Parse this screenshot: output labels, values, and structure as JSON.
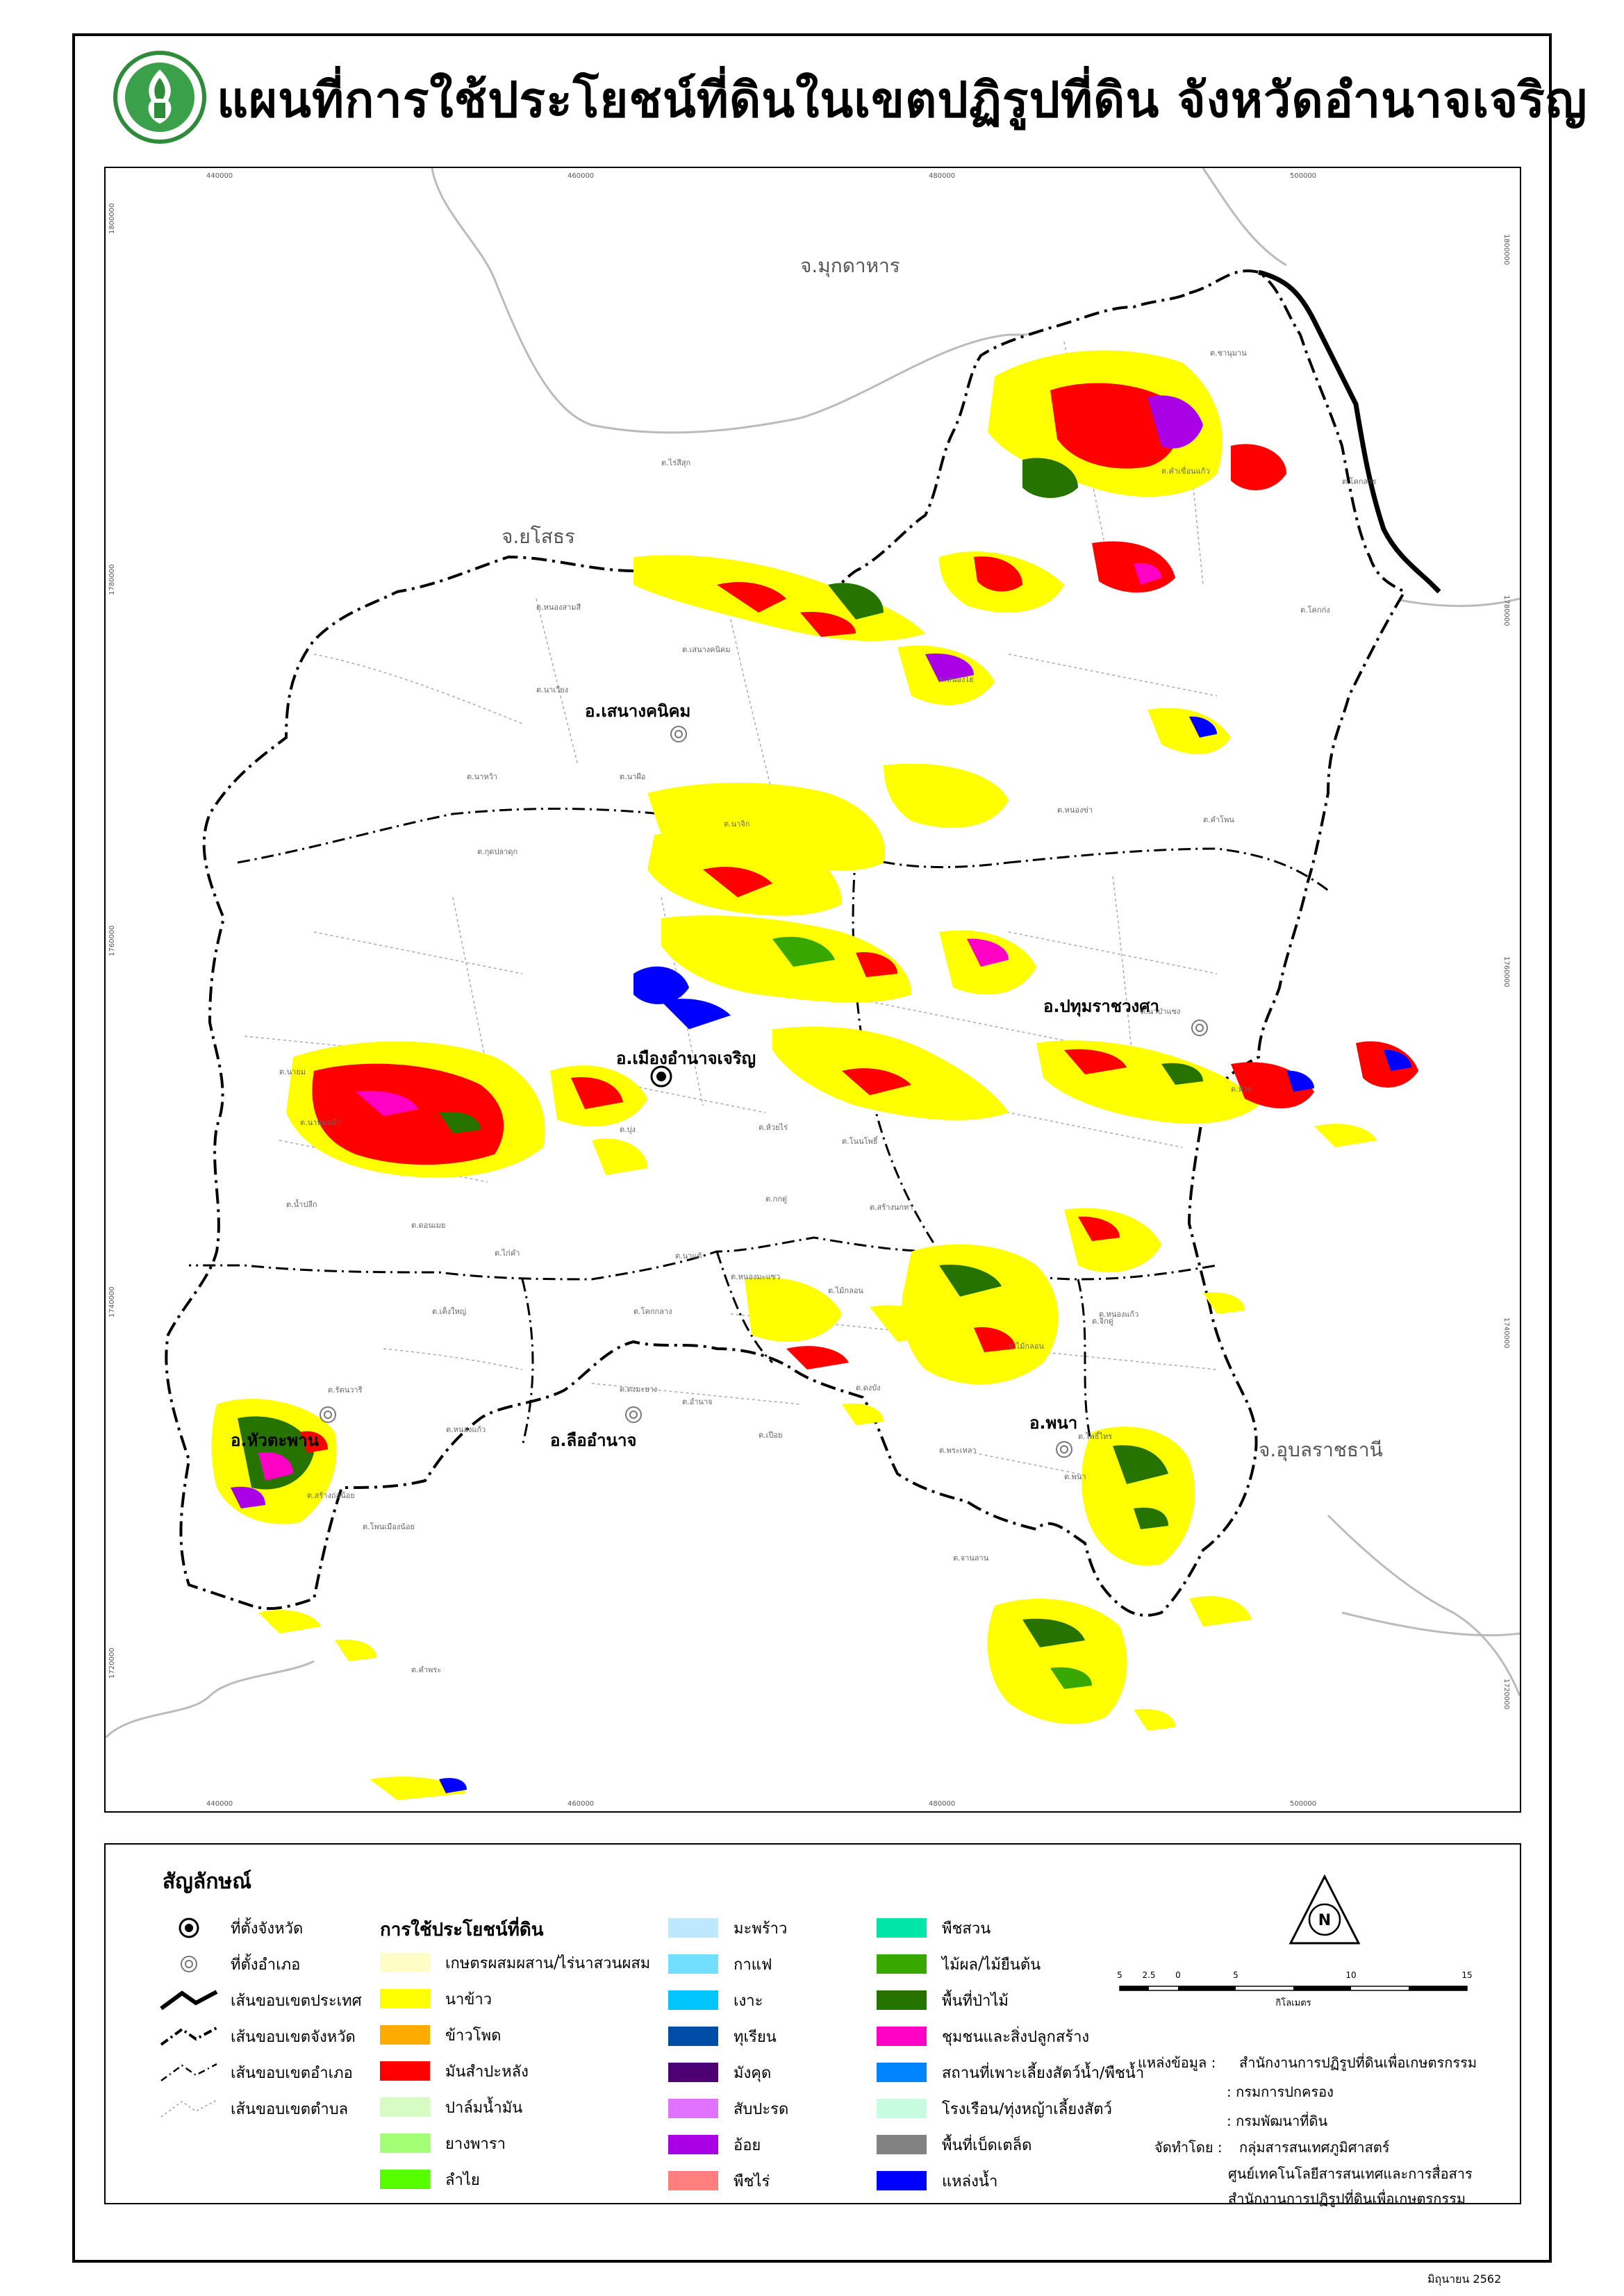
{
  "title": "แผนที่การใช้ประโยชน์ที่ดินในเขตปฏิรูปที่ดิน จังหวัดอำนาจเจริญ",
  "map": {
    "x_ticks": [
      "440000",
      "460000",
      "480000",
      "500000"
    ],
    "y_ticks": [
      "1800000",
      "1780000",
      "1760000",
      "1740000",
      "1720000"
    ],
    "provinces": {
      "mukdahan": "จ.มุกดาหาร",
      "yasothon": "จ.ยโสธร",
      "ubon": "จ.อุบลราชธานี"
    },
    "districts": {
      "senangkhanikhom": "อ.เสนางคนิคม",
      "mueang": "อ.เมืองอำนาจเจริญ",
      "pathum": "อ.ปทุมราชวงศา",
      "huataphan": "อ.หัวตะพาน",
      "lueamnat": "อ.ลืออำนาจ",
      "phana": "อ.พนา"
    },
    "subdistricts": [
      "ต.ชานุมาน",
      "ต.โคกสาร",
      "ต.คำเขื่อนแก้ว",
      "ต.โคกก่ง",
      "ต.ไร่สีสุก",
      "ต.หนองสามสี",
      "ต.เสนางคนิคม",
      "ต.นาเวียง",
      "ต.หนองไฮ",
      "ต.นาหว้า",
      "ต.นาผือ",
      "ต.กุดปลาดุก",
      "ต.นาจิก",
      "ต.หนองข่า",
      "ต.คำโพน",
      "ต.นาป่าแซง",
      "ต.ห้วย",
      "ต.นายม",
      "ต.นาหมอม้า",
      "ต.บุ่ง",
      "ต.ห้วยไร่",
      "ต.โนนโพธิ์",
      "ต.สร้างนกทา",
      "ต.กกดู่",
      "ต.หนองมะแซว",
      "ต.น้ำปลีก",
      "ต.ดอนเมย",
      "ต.ไก่คำ",
      "ต.นาแต้",
      "ต.ไม้กลอน",
      "ต.จิกดู่",
      "ต.หนองแก้ว",
      "ต.เค็งใหญ่",
      "ต.รัตนวารี",
      "ต.หนองแก้ว",
      "ต.โคกกลาง",
      "ต.อำนาจ",
      "ต.ดงมะยาง",
      "ต.เปือย",
      "ต.ดงบัง",
      "ต.พระเหลา",
      "ต.ไม้กลอน",
      "ต.พนา",
      "ต.จานลาน",
      "ต.โพธิ์ไทร",
      "ต.สร้างถ่อน้อย",
      "ต.โพนเมืองน้อย",
      "ต.คำพระ"
    ]
  },
  "legend": {
    "title": "สัญลักษณ์",
    "symbols": [
      {
        "label": "ที่ตั้งจังหวัด",
        "icon": "province-seat-icon"
      },
      {
        "label": "ที่ตั้งอำเภอ",
        "icon": "district-seat-icon"
      },
      {
        "label": "เส้นขอบเขตประเทศ",
        "icon": "country-boundary-line"
      },
      {
        "label": "เส้นขอบเขตจังหวัด",
        "icon": "province-boundary-line"
      },
      {
        "label": "เส้นขอบเขตอำเภอ",
        "icon": "district-boundary-line"
      },
      {
        "label": "เส้นขอบเขตตำบล",
        "icon": "subdistrict-boundary-line"
      }
    ],
    "landuse_title": "การใช้ประโยชน์ที่ดิน",
    "landuse": [
      {
        "label": "เกษตรผสมผสาน/ไร่นาสวนผสม",
        "color": "#fefdc8"
      },
      {
        "label": "นาข้าว",
        "color": "#ffff00"
      },
      {
        "label": "ข้าวโพด",
        "color": "#ffaa00"
      },
      {
        "label": "มันสำปะหลัง",
        "color": "#ff0000"
      },
      {
        "label": "ปาล์มน้ำมัน",
        "color": "#d6fcc4"
      },
      {
        "label": "ยางพารา",
        "color": "#a3ff73"
      },
      {
        "label": "ลำไย",
        "color": "#55ff00"
      },
      {
        "label": "มะพร้าว",
        "color": "#bee8ff"
      },
      {
        "label": "กาแฟ",
        "color": "#73dfff"
      },
      {
        "label": "เงาะ",
        "color": "#00c5ff"
      },
      {
        "label": "ทุเรียน",
        "color": "#004da8"
      },
      {
        "label": "มังคุด",
        "color": "#4c0073"
      },
      {
        "label": "สับปะรด",
        "color": "#df73ff"
      },
      {
        "label": "อ้อย",
        "color": "#a900e6"
      },
      {
        "label": "พืชไร่",
        "color": "#ff7f7f"
      },
      {
        "label": "พืชสวน",
        "color": "#00e6a9"
      },
      {
        "label": "ไม้ผล/ไม้ยืนต้น",
        "color": "#38a800"
      },
      {
        "label": "พื้นที่ป่าไม้",
        "color": "#267300"
      },
      {
        "label": "ชุมชนและสิ่งปลูกสร้าง",
        "color": "#ff00c5"
      },
      {
        "label": "สถานที่เพาะเลี้ยงสัตว์น้ำ/พืชน้ำ",
        "color": "#0084ff"
      },
      {
        "label": "โรงเรือน/ทุ่งหญ้าเลี้ยงสัตว์",
        "color": "#c7fce0"
      },
      {
        "label": "พื้นที่เบ็ดเตล็ด",
        "color": "#828282"
      },
      {
        "label": "แหล่งน้ำ",
        "color": "#0000ff"
      }
    ],
    "scale": {
      "ticks": [
        "5",
        "2.5",
        "0",
        "5",
        "10",
        "15"
      ],
      "unit": "กิโลเมตร"
    },
    "north_label": "N",
    "source_label": "แหล่งข้อมูล :",
    "sources": [
      "สำนักงานการปฏิรูปที่ดินเพื่อเกษตรกรรม",
      ": กรมการปกครอง",
      ": กรมพัฒนาที่ดิน"
    ],
    "producer_label": "จัดทำโดย :",
    "producers": [
      "กลุ่มสารสนเทศภูมิศาสตร์",
      "ศูนย์เทคโนโลยีสารสนเทศและการสื่อสาร",
      "สำนักงานการปฏิรูปที่ดินเพื่อเกษตรกรรม"
    ]
  },
  "date": "มิถุนายน 2562"
}
